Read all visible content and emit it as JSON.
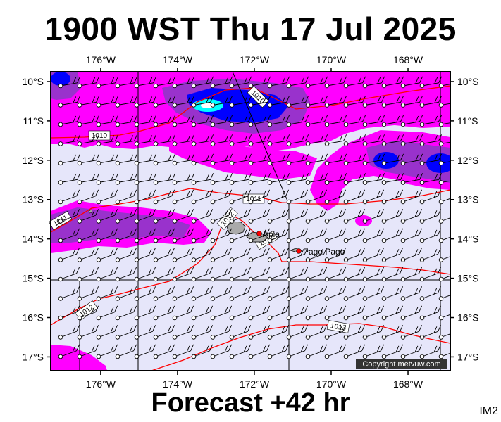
{
  "title": "1900 WST Thu 17 Jul 2025",
  "forecast": "Forecast +42 hr",
  "product_code": "IM2",
  "copyright": "Copyright metvuw.com",
  "map": {
    "lon_range": [
      -177.3,
      -166.9
    ],
    "lat_range": [
      -17.35,
      -9.75
    ],
    "lon_ticks": [
      {
        "value": -176,
        "label": "176°W"
      },
      {
        "value": -174,
        "label": "174°W"
      },
      {
        "value": -172,
        "label": "172°W"
      },
      {
        "value": -170,
        "label": "170°W"
      },
      {
        "value": -168,
        "label": "168°W"
      }
    ],
    "lat_ticks": [
      {
        "value": -10,
        "label": "10°S"
      },
      {
        "value": -11,
        "label": "11°S"
      },
      {
        "value": -12,
        "label": "12°S"
      },
      {
        "value": -13,
        "label": "13°S"
      },
      {
        "value": -14,
        "label": "14°S"
      },
      {
        "value": -15,
        "label": "15°S"
      },
      {
        "value": -16,
        "label": "16°S"
      },
      {
        "value": -17,
        "label": "17°S"
      }
    ],
    "colors": {
      "background": "#e6e6fa",
      "light_precip": "#ff00ff",
      "medium_precip": "#9932cc",
      "heavy_precip": "#0000ff",
      "intense_precip": "#00ffff",
      "isobar": "#ff0000",
      "gridline": "#000000"
    },
    "isobars": [
      {
        "label": "1010"
      },
      {
        "label": "1010"
      },
      {
        "label": "1011"
      },
      {
        "label": "1011"
      },
      {
        "label": "1012"
      },
      {
        "label": "1012"
      },
      {
        "label": "1012"
      },
      {
        "label": "1013"
      }
    ],
    "places": [
      {
        "name": "Apia",
        "lon": -171.77,
        "lat": -13.83
      },
      {
        "name": "Pago Pago",
        "lon": -170.7,
        "lat": -14.28
      }
    ]
  }
}
